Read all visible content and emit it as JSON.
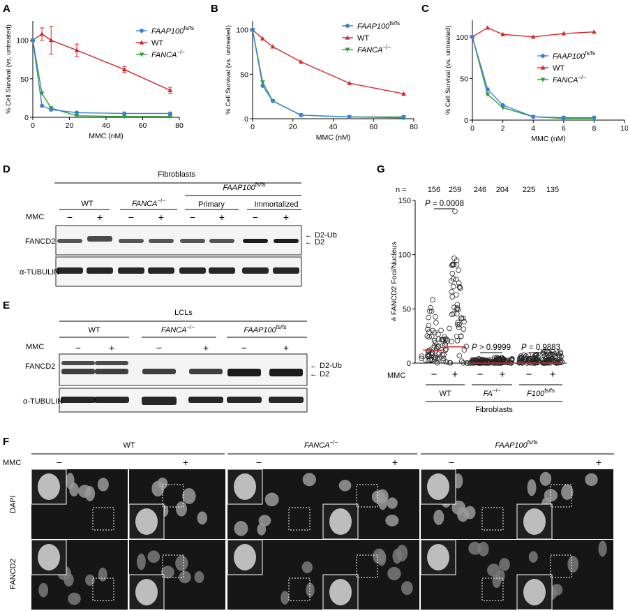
{
  "panels": {
    "A": "A",
    "B": "B",
    "C": "C",
    "D": "D",
    "E": "E",
    "F": "F",
    "G": "G"
  },
  "colors": {
    "faap100": "#3a7fd5",
    "wt": "#d62728",
    "fanca": "#2ca02c",
    "median": "#d62728"
  },
  "legend": {
    "faap100_main": "FAAP100",
    "faap100_sup": "fs/fs",
    "wt": "WT",
    "fanca_main": "FANCA",
    "fanca_sup": "−/−"
  },
  "chart_data": [
    {
      "type": "line",
      "panel": "A",
      "xlabel": "MMC (nM)",
      "ylabel": "% Cell Survival (vs. untreated)",
      "xlim": [
        0,
        80
      ],
      "ylim": [
        0,
        125
      ],
      "xticks": [
        0,
        20,
        40,
        60,
        80
      ],
      "yticks": [
        0,
        50,
        100
      ],
      "legend_position": "top-right",
      "series": [
        {
          "name": "FAAP100 fs/fs",
          "x": [
            0,
            5,
            10,
            24,
            50,
            75
          ],
          "y": [
            100,
            15,
            10,
            6,
            5,
            5
          ]
        },
        {
          "name": "WT",
          "x": [
            0,
            5,
            10,
            24,
            50,
            75
          ],
          "y": [
            100,
            108,
            100,
            87,
            62,
            35
          ],
          "err": [
            0,
            8,
            18,
            8,
            4,
            4
          ]
        },
        {
          "name": "FANCA −/−",
          "x": [
            0,
            5,
            10,
            24,
            50,
            75
          ],
          "y": [
            100,
            31,
            12,
            2,
            1,
            1
          ]
        }
      ]
    },
    {
      "type": "line",
      "panel": "B",
      "xlabel": "MMC (nM)",
      "ylabel": "% Cell Survival (vs. untreated)",
      "xlim": [
        0,
        80
      ],
      "ylim": [
        0,
        110
      ],
      "xticks": [
        0,
        20,
        40,
        60,
        80
      ],
      "yticks": [
        0,
        50,
        100
      ],
      "legend_position": "top-right",
      "series": [
        {
          "name": "FAAP100 fs/fs",
          "x": [
            0,
            5,
            10,
            24,
            48,
            75
          ],
          "y": [
            100,
            37,
            20,
            4,
            2,
            1
          ]
        },
        {
          "name": "WT",
          "x": [
            0,
            5,
            10,
            24,
            48,
            75
          ],
          "y": [
            100,
            90,
            81,
            64,
            40,
            28
          ]
        },
        {
          "name": "FANCA −/−",
          "x": [
            0,
            5,
            10,
            24,
            48,
            75
          ],
          "y": [
            100,
            41,
            20,
            4,
            2,
            2
          ]
        }
      ]
    },
    {
      "type": "line",
      "panel": "C",
      "xlabel": "MMC (nM)",
      "ylabel": "% Cell Survival (vs. untreated)",
      "xlim": [
        0,
        10
      ],
      "ylim": [
        0,
        120
      ],
      "xticks": [
        0,
        2,
        4,
        6,
        8,
        10
      ],
      "yticks": [
        0,
        50,
        100
      ],
      "legend_position": "right",
      "series": [
        {
          "name": "FAAP100 fs/fs",
          "x": [
            0,
            1,
            2,
            4,
            6,
            8
          ],
          "y": [
            100,
            37,
            18,
            4,
            3,
            3
          ]
        },
        {
          "name": "WT",
          "x": [
            0,
            1,
            2,
            4,
            6,
            8
          ],
          "y": [
            100,
            111,
            103,
            100,
            104,
            106
          ]
        },
        {
          "name": "FANCA −/−",
          "x": [
            0,
            1,
            2,
            4,
            6,
            8
          ],
          "y": [
            100,
            31,
            15,
            4,
            2,
            2
          ]
        }
      ]
    },
    {
      "type": "scatter",
      "panel": "G",
      "ylabel": "# FANCD2 Foci/Nucleus",
      "ylim": [
        0,
        150
      ],
      "yticks": [
        0,
        50,
        100,
        150
      ],
      "n_label": "n =",
      "groups": [
        {
          "n": "156",
          "mmc": "−",
          "median": 12,
          "max": 60
        },
        {
          "n": "259",
          "mmc": "+",
          "median": 15,
          "max": 100,
          "outlier": 140
        },
        {
          "n": "246",
          "mmc": "−",
          "median": 0,
          "max": 4
        },
        {
          "n": "204",
          "mmc": "+",
          "median": 0,
          "max": 5
        },
        {
          "n": "225",
          "mmc": "−",
          "median": 0,
          "max": 8
        },
        {
          "n": "135",
          "mmc": "+",
          "median": 0,
          "max": 12
        }
      ],
      "pvalues": [
        {
          "italic": "P",
          "text": " = 0.0008"
        },
        {
          "italic": "P",
          "text": " > 0.9999"
        },
        {
          "italic": "P",
          "text": " = 0.9883"
        }
      ],
      "mmc_label": "MMC",
      "genotypes": [
        "WT",
        "FA",
        "F100"
      ],
      "genotype_sups": [
        "",
        "−/−",
        "fs/fs"
      ],
      "group_label": "Fibroblasts"
    }
  ],
  "blot_d": {
    "group": "Fibroblasts",
    "genotypes": [
      "WT",
      "FANCA",
      "FAAP100"
    ],
    "sups": [
      "",
      "−/−",
      "fs/fs"
    ],
    "sub": [
      "Primary",
      "Immortalized"
    ],
    "mmc": "MMC",
    "signs": [
      "−",
      "+",
      "−",
      "+",
      "−",
      "+",
      "−",
      "+"
    ],
    "rows": [
      "FANCD2",
      "α-TUBULIN"
    ],
    "bands": [
      "← D2-Ub",
      "← D2"
    ]
  },
  "blot_e": {
    "group": "LCLs",
    "genotypes": [
      "WT",
      "FANCA",
      "FAAP100"
    ],
    "sups": [
      "",
      "−/−",
      "fs/fs"
    ],
    "mmc": "MMC",
    "signs": [
      "−",
      "+",
      "−",
      "+",
      "−",
      "+"
    ],
    "rows": [
      "FANCD2",
      "α-TUBULIN"
    ],
    "bands": [
      "← D2-Ub",
      "← D2"
    ]
  },
  "micro_f": {
    "genotypes": [
      "WT",
      "FANCA",
      "FAAP100"
    ],
    "sups": [
      "",
      "−/−",
      "fs/fs"
    ],
    "mmc": "MMC",
    "signs": [
      "−",
      "+",
      "−",
      "+",
      "−",
      "+"
    ],
    "rows": [
      "DAPI",
      "FANCD2"
    ]
  }
}
